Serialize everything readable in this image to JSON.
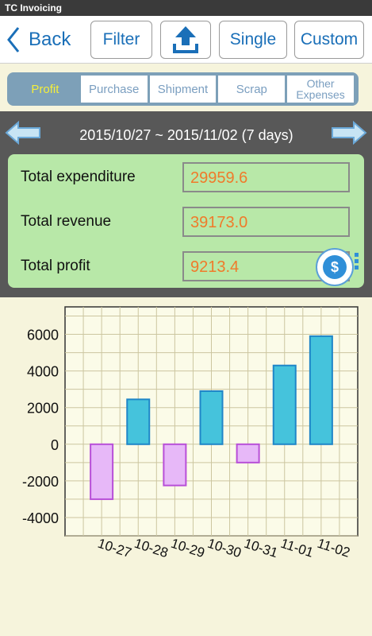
{
  "app": {
    "title": "TC Invoicing"
  },
  "toolbar": {
    "back_label": "Back",
    "filter_label": "Filter",
    "single_label": "Single",
    "custom_label": "Custom",
    "upload_icon": "upload-icon"
  },
  "tabs": [
    {
      "label": "Profit",
      "active": true
    },
    {
      "label": "Purchase",
      "active": false
    },
    {
      "label": "Shipment",
      "active": false
    },
    {
      "label": "Scrap",
      "active": false
    },
    {
      "label": "Other Expenses",
      "active": false
    }
  ],
  "period": {
    "range": "2015/10/27 ~ 2015/11/02  (7 days)"
  },
  "summary": {
    "expenditure_label": "Total expenditure",
    "expenditure_value": "29959.6",
    "revenue_label": "Total revenue",
    "revenue_value": "39173.0",
    "profit_label": "Total profit",
    "profit_value": "9213.4"
  },
  "colors": {
    "positive_fill": "#45c3dc",
    "positive_stroke": "#1f86c8",
    "negative_fill": "#e7b8f8",
    "negative_stroke": "#b84fd8",
    "value_text": "#f07a2a",
    "summary_bg": "#b8e8a8"
  },
  "chart_data": {
    "type": "bar",
    "categories": [
      "10-27",
      "10-28",
      "10-29",
      "10-30",
      "10-31",
      "11-01",
      "11-02"
    ],
    "values": [
      -3000,
      2450,
      -2250,
      2900,
      -1000,
      4300,
      5900
    ],
    "yticks": [
      6000,
      4000,
      2000,
      0,
      -2000,
      -4000
    ],
    "ylim": [
      -5000,
      7500
    ],
    "grid": true
  }
}
